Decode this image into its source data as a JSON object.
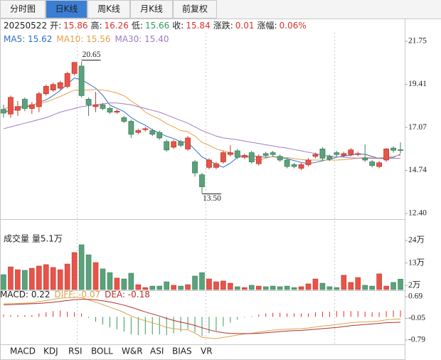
{
  "tabs": [
    "分时图",
    "日K线",
    "周K线",
    "月K线",
    "前复权"
  ],
  "indicator_tabs": [
    "MACD",
    "KDJ",
    "RSI",
    "BOLL",
    "W&R",
    "ASI",
    "BIAS",
    "VR"
  ],
  "chart_data": [
    {
      "type": "candlestick",
      "info": {
        "date": "20250522",
        "items": [
          {
            "label": "开:",
            "value": "15.86",
            "color": "#e0302c"
          },
          {
            "label": "高:",
            "value": "16.26",
            "color": "#e0302c"
          },
          {
            "label": "低:",
            "value": "15.66",
            "color": "#2f9a5c"
          },
          {
            "label": "收:",
            "value": "15.84",
            "color": "#e0302c"
          },
          {
            "label": "涨跌:",
            "value": "0.01",
            "color": "#e0302c"
          },
          {
            "label": "涨幅:",
            "value": "0.06%",
            "color": "#e0302c"
          }
        ]
      },
      "ylim": [
        12.4,
        21.75
      ],
      "yticks": [
        21.75,
        19.41,
        17.07,
        14.74,
        {
          "value": 12.4,
          "label": "12.40"
        }
      ],
      "up_color": "#e8534a",
      "down_color": "#5aa27c",
      "open": [
        18.05,
        17.8,
        18.0,
        18.6,
        18.1,
        18.2,
        18.9,
        19.1,
        19.2,
        19.3,
        20.0,
        20.4,
        18.6,
        18.2,
        18.3,
        18.1,
        17.9,
        17.6,
        17.4,
        16.8,
        16.95,
        16.9,
        16.8,
        16.3,
        16.0,
        16.3,
        15.9,
        15.2,
        14.5,
        14.9,
        14.9,
        15.2,
        15.6,
        15.8,
        15.45,
        15.7,
        15.1,
        15.65,
        15.7,
        15.5,
        15.3,
        15.05,
        14.85,
        15.05,
        15.5,
        15.9,
        15.5,
        15.7,
        15.55,
        15.6,
        15.6,
        15.4,
        15.2,
        14.95,
        15.3,
        15.95,
        15.86
      ],
      "high": [
        18.3,
        18.8,
        18.5,
        18.7,
        18.45,
        19.0,
        19.4,
        19.5,
        19.6,
        20.1,
        20.62,
        20.65,
        18.7,
        19.0,
        18.4,
        18.2,
        18.05,
        17.7,
        17.5,
        17.0,
        17.1,
        17.0,
        16.9,
        16.4,
        16.4,
        16.4,
        16.6,
        15.3,
        14.6,
        15.4,
        15.2,
        15.8,
        16.1,
        15.9,
        15.65,
        15.8,
        15.6,
        15.75,
        15.8,
        15.6,
        15.4,
        15.15,
        15.15,
        15.4,
        15.7,
        16.0,
        15.6,
        15.8,
        15.75,
        15.95,
        15.75,
        16.15,
        15.3,
        15.25,
        15.95,
        16.05,
        16.26
      ],
      "low": [
        17.6,
        17.6,
        17.7,
        17.95,
        17.8,
        17.9,
        18.8,
        19.0,
        19.1,
        19.2,
        19.9,
        18.7,
        17.7,
        17.9,
        18.0,
        17.8,
        17.8,
        17.3,
        16.5,
        16.7,
        16.85,
        16.6,
        16.4,
        15.75,
        15.9,
        16.0,
        15.8,
        14.4,
        13.5,
        14.8,
        14.8,
        15.1,
        15.5,
        15.35,
        15.35,
        15.1,
        15.0,
        15.45,
        15.5,
        15.2,
        14.85,
        14.85,
        14.75,
        14.95,
        15.4,
        15.3,
        15.25,
        15.5,
        15.45,
        15.5,
        15.5,
        15.2,
        14.9,
        14.85,
        15.2,
        15.7,
        15.66
      ],
      "close": [
        17.85,
        18.7,
        18.2,
        18.1,
        18.3,
        18.9,
        19.3,
        19.4,
        19.5,
        20.0,
        20.6,
        18.8,
        18.3,
        18.3,
        18.1,
        17.9,
        17.95,
        17.4,
        16.7,
        16.9,
        17.0,
        16.7,
        16.5,
        15.85,
        16.3,
        16.1,
        16.5,
        14.6,
        13.85,
        15.3,
        15.1,
        15.7,
        15.7,
        15.45,
        15.55,
        15.2,
        15.5,
        15.55,
        15.6,
        15.3,
        14.95,
        14.95,
        15.05,
        15.3,
        15.6,
        15.4,
        15.35,
        15.6,
        15.65,
        15.85,
        15.65,
        15.3,
        15.0,
        15.15,
        15.9,
        15.83,
        15.84
      ],
      "series": [
        {
          "name": "MA5: 15.62",
          "color": "#2e6fc2",
          "values": [
            17.9,
            18.0,
            18.1,
            18.2,
            18.23,
            18.44,
            18.56,
            18.8,
            19.08,
            19.42,
            19.76,
            19.66,
            19.44,
            19.2,
            18.82,
            18.28,
            18.11,
            17.93,
            17.61,
            17.37,
            17.19,
            16.94,
            16.76,
            16.59,
            16.47,
            16.29,
            16.25,
            15.87,
            15.47,
            15.27,
            15.07,
            14.91,
            15.13,
            15.45,
            15.5,
            15.52,
            15.48,
            15.45,
            15.48,
            15.43,
            15.38,
            15.27,
            15.17,
            15.11,
            15.17,
            15.26,
            15.34,
            15.45,
            15.52,
            15.57,
            15.62,
            15.61,
            15.49,
            15.39,
            15.4,
            15.44,
            15.62
          ]
        },
        {
          "name": "MA10: 15.56",
          "color": "#e6a04b",
          "values": [
            18.1,
            18.15,
            18.2,
            18.25,
            18.3,
            18.35,
            18.45,
            18.6,
            18.75,
            18.93,
            19.1,
            19.1,
            19.1,
            19.13,
            19.1,
            19.04,
            18.94,
            18.79,
            18.51,
            18.26,
            17.9,
            17.7,
            17.52,
            17.27,
            17.1,
            16.9,
            16.84,
            16.6,
            16.26,
            16.1,
            15.9,
            15.8,
            15.7,
            15.6,
            15.5,
            15.38,
            15.28,
            15.4,
            15.5,
            15.45,
            15.44,
            15.38,
            15.32,
            15.3,
            15.3,
            15.3,
            15.3,
            15.3,
            15.32,
            15.35,
            15.4,
            15.44,
            15.42,
            15.42,
            15.46,
            15.5,
            15.56
          ]
        },
        {
          "name": "MA30: 15.40",
          "color": "#a07cc0",
          "values": [
            17.0,
            17.1,
            17.2,
            17.3,
            17.4,
            17.5,
            17.6,
            17.75,
            17.9,
            18.0,
            18.1,
            18.2,
            18.25,
            18.3,
            18.35,
            18.4,
            18.4,
            18.35,
            18.3,
            18.2,
            18.1,
            18.0,
            17.9,
            17.75,
            17.6,
            17.45,
            17.3,
            17.1,
            16.9,
            16.75,
            16.6,
            16.5,
            16.45,
            16.4,
            16.33,
            16.26,
            16.2,
            16.13,
            16.07,
            16.0,
            15.95,
            15.87,
            15.8,
            15.72,
            15.65,
            15.57,
            15.52,
            15.48,
            15.45,
            15.42,
            15.4,
            15.4,
            15.39,
            15.38,
            15.38,
            15.39,
            15.4
          ]
        }
      ],
      "annotations": [
        {
          "value": 20.65,
          "label": "20.65"
        },
        {
          "value": 13.5,
          "label": "13.50"
        }
      ]
    },
    {
      "type": "bar",
      "title": "成交量 量5.1万",
      "ylim": [
        0,
        24
      ],
      "yticks": [
        {
          "value": 24,
          "label": "24万"
        },
        {
          "value": 13,
          "label": "13万"
        },
        {
          "value": 2,
          "label": "2万"
        }
      ],
      "values": [
        7.3,
        11.1,
        9.7,
        9.4,
        10.4,
        11.5,
        12.2,
        10.8,
        9.7,
        12.5,
        18.1,
        21.9,
        17.0,
        13.2,
        10.1,
        8.3,
        5.6,
        5.2,
        8.0,
        2.4,
        1.0,
        1.7,
        1.7,
        3.8,
        2.1,
        1.7,
        2.4,
        6.6,
        8.3,
        5.2,
        3.8,
        4.2,
        3.1,
        1.4,
        1.0,
        2.1,
        1.7,
        1.4,
        1.7,
        1.4,
        1.7,
        1.0,
        1.4,
        2.8,
        5.2,
        3.1,
        1.4,
        1.0,
        7.0,
        3.5,
        5.9,
        2.1,
        1.7,
        7.7,
        1.7,
        3.5,
        5.1
      ]
    },
    {
      "type": "macd",
      "name": "MACD: 0.22",
      "up_color": "#e0302c",
      "down_color": "#3a9a5a",
      "ylim": [
        -0.79,
        0.69
      ],
      "yticks": [
        0.69,
        -0.05,
        -0.79
      ],
      "values": [
        0.08,
        0.06,
        0.06,
        0.06,
        0.06,
        0.12,
        0.16,
        0.2,
        0.22,
        0.18,
        0.16,
        0.12,
        -0.04,
        -0.16,
        -0.26,
        -0.36,
        -0.42,
        -0.5,
        -0.6,
        -0.62,
        -0.6,
        -0.6,
        -0.6,
        -0.62,
        -0.56,
        -0.5,
        -0.42,
        -0.52,
        -0.66,
        -0.56,
        -0.48,
        -0.32,
        -0.2,
        -0.1,
        -0.02,
        0.02,
        0.08,
        0.12,
        0.14,
        0.14,
        0.12,
        0.12,
        0.12,
        0.12,
        0.16,
        0.18,
        0.18,
        0.2,
        0.2,
        0.2,
        0.2,
        0.18,
        0.16,
        0.16,
        0.2,
        0.22,
        0.22
      ],
      "series": [
        {
          "name": "DIFF: -0.07",
          "color": "#d9a54a",
          "values": [
            0.45,
            0.45,
            0.46,
            0.47,
            0.48,
            0.52,
            0.56,
            0.6,
            0.64,
            0.65,
            0.67,
            0.66,
            0.58,
            0.5,
            0.42,
            0.33,
            0.25,
            0.15,
            0.03,
            -0.06,
            -0.13,
            -0.2,
            -0.27,
            -0.36,
            -0.4,
            -0.43,
            -0.44,
            -0.55,
            -0.7,
            -0.72,
            -0.74,
            -0.7,
            -0.66,
            -0.62,
            -0.58,
            -0.56,
            -0.52,
            -0.48,
            -0.45,
            -0.43,
            -0.42,
            -0.41,
            -0.4,
            -0.38,
            -0.34,
            -0.31,
            -0.29,
            -0.26,
            -0.23,
            -0.2,
            -0.18,
            -0.17,
            -0.16,
            -0.14,
            -0.1,
            -0.08,
            -0.07
          ]
        },
        {
          "name": "DEA: -0.18",
          "color": "#b3302c",
          "values": [
            0.41,
            0.42,
            0.43,
            0.44,
            0.45,
            0.46,
            0.48,
            0.5,
            0.53,
            0.56,
            0.59,
            0.6,
            0.6,
            0.58,
            0.55,
            0.51,
            0.46,
            0.4,
            0.33,
            0.25,
            0.17,
            0.1,
            0.03,
            -0.05,
            -0.12,
            -0.18,
            -0.23,
            -0.29,
            -0.37,
            -0.44,
            -0.5,
            -0.54,
            -0.56,
            -0.57,
            -0.57,
            -0.57,
            -0.56,
            -0.54,
            -0.52,
            -0.5,
            -0.48,
            -0.47,
            -0.46,
            -0.44,
            -0.42,
            -0.4,
            -0.38,
            -0.36,
            -0.33,
            -0.3,
            -0.28,
            -0.26,
            -0.24,
            -0.22,
            -0.2,
            -0.19,
            -0.18
          ]
        }
      ]
    }
  ]
}
